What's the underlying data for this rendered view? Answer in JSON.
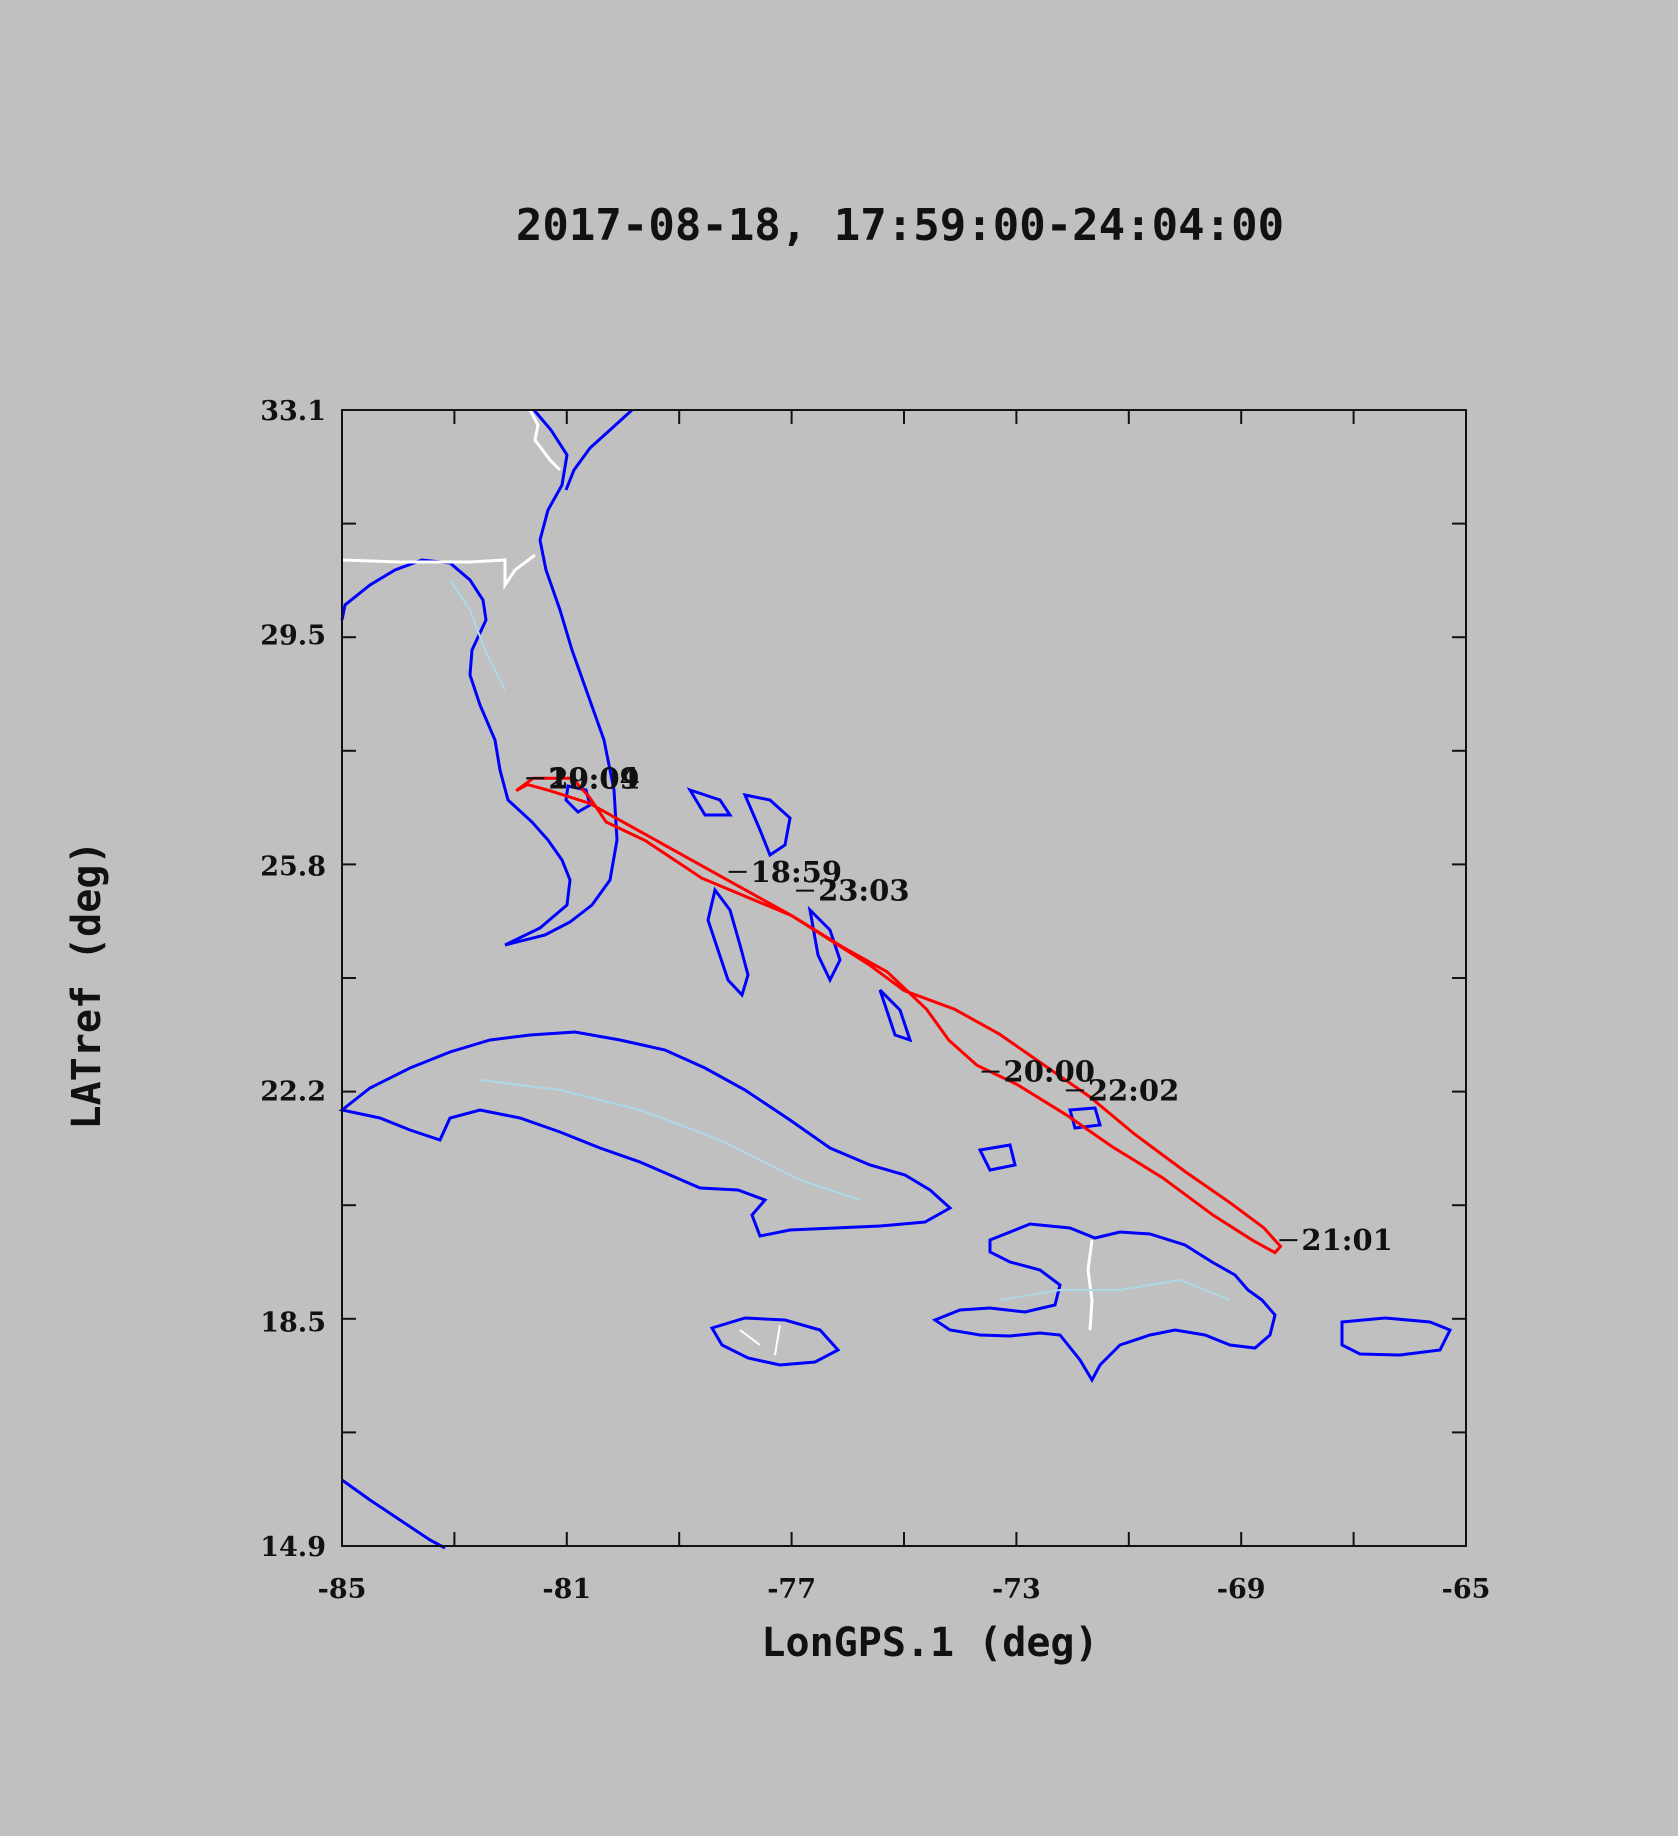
{
  "colors": {
    "background": "#c0c0c0",
    "coastline": "#0000ff",
    "borders": "#ffffff",
    "rivers": "#add8e6",
    "track": "#ff0000",
    "text": "#111111"
  },
  "chart_data": {
    "type": "line",
    "title": "2017-08-18, 17:59:00-24:04:00",
    "xlabel": "LonGPS.1 (deg)",
    "ylabel": "LATref (deg)",
    "xlim": [
      -85,
      -65
    ],
    "ylim": [
      14.9,
      33.1
    ],
    "xticks": [
      -85,
      -81,
      -77,
      -73,
      -69,
      -65
    ],
    "yticks": [
      14.9,
      18.5,
      22.2,
      25.8,
      29.5,
      33.1
    ],
    "xtick_labels": [
      "-85",
      "-81",
      "-77",
      "-73",
      "-69",
      "-65"
    ],
    "ytick_labels": [
      "14.9",
      "18.5",
      "22.2",
      "25.8",
      "29.5",
      "33.1"
    ],
    "grid": false,
    "series": [
      {
        "x": [
          -81.9,
          -81.6,
          -81.2,
          -80.9,
          -80.6,
          -80.3,
          -79.6,
          -78.6,
          -77.8,
          -77.0,
          -76.3,
          -75.6,
          -75.0,
          -74.1,
          -73.3,
          -72.5,
          -71.7,
          -70.9,
          -70.0,
          -69.2,
          -68.6,
          -68.3,
          -68.4,
          -68.8,
          -69.5,
          -70.4,
          -71.3,
          -72.1,
          -73.0,
          -73.7,
          -74.2,
          -74.6,
          -75.3,
          -76.1,
          -77.0,
          -78.0,
          -79.0,
          -79.8,
          -80.6,
          -81.3,
          -81.7,
          -81.9
        ],
        "y": [
          27.0,
          27.2,
          27.2,
          27.2,
          26.9,
          26.5,
          26.2,
          25.6,
          25.3,
          25.0,
          24.6,
          24.2,
          23.8,
          23.5,
          23.1,
          22.6,
          22.1,
          21.5,
          20.9,
          20.4,
          20.0,
          19.7,
          19.6,
          19.8,
          20.2,
          20.8,
          21.3,
          21.8,
          22.3,
          22.6,
          23.0,
          23.5,
          24.1,
          24.5,
          25.0,
          25.5,
          26.0,
          26.4,
          26.8,
          27.0,
          27.1,
          27.0
        ]
      }
    ],
    "annotations": [
      {
        "text": "19:09",
        "x": -81.4,
        "y": 27.2
      },
      {
        "text": "20:04",
        "x": -81.4,
        "y": 27.2
      },
      {
        "text": "18:59",
        "x": -77.8,
        "y": 25.7
      },
      {
        "text": "23:03",
        "x": -76.6,
        "y": 25.4
      },
      {
        "text": "20:00",
        "x": -73.3,
        "y": 22.5
      },
      {
        "text": "22:02",
        "x": -71.8,
        "y": 22.2
      },
      {
        "text": "21:01",
        "x": -68.0,
        "y": 19.8
      }
    ]
  }
}
